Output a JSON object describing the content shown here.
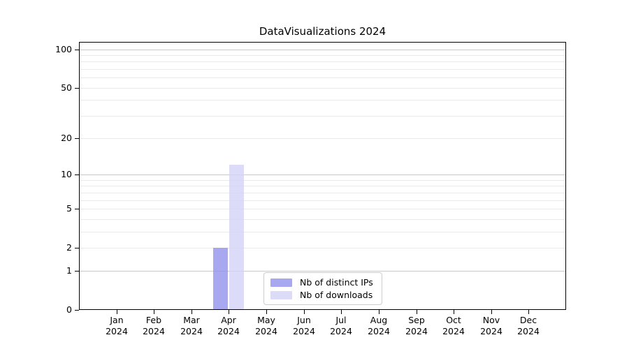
{
  "chart_data": {
    "type": "bar",
    "title": "DataVisualizations 2024",
    "xlabel": "",
    "ylabel": "",
    "yscale": "log1p",
    "ylim": [
      0,
      114
    ],
    "yticks": [
      0,
      1,
      2,
      5,
      10,
      20,
      50,
      100
    ],
    "minor_yticks": [
      3,
      4,
      6,
      7,
      8,
      9,
      30,
      40,
      60,
      70,
      80,
      90
    ],
    "grid": "horizontal",
    "legend_position": "bottom-center",
    "categories": [
      {
        "label": "Jan",
        "sublabel": "2024"
      },
      {
        "label": "Feb",
        "sublabel": "2024"
      },
      {
        "label": "Mar",
        "sublabel": "2024"
      },
      {
        "label": "Apr",
        "sublabel": "2024"
      },
      {
        "label": "May",
        "sublabel": "2024"
      },
      {
        "label": "Jun",
        "sublabel": "2024"
      },
      {
        "label": "Jul",
        "sublabel": "2024"
      },
      {
        "label": "Aug",
        "sublabel": "2024"
      },
      {
        "label": "Sep",
        "sublabel": "2024"
      },
      {
        "label": "Oct",
        "sublabel": "2024"
      },
      {
        "label": "Nov",
        "sublabel": "2024"
      },
      {
        "label": "Dec",
        "sublabel": "2024"
      }
    ],
    "series": [
      {
        "name": "Nb of distinct IPs",
        "color": "rgba(146,146,236,0.8)",
        "values": [
          0,
          0,
          0,
          2,
          0,
          0,
          0,
          0,
          0,
          0,
          0,
          0
        ]
      },
      {
        "name": "Nb of downloads",
        "color": "rgba(211,211,246,0.8)",
        "values": [
          0,
          0,
          0,
          12,
          0,
          0,
          0,
          0,
          0,
          0,
          0,
          0
        ]
      }
    ],
    "colors": {
      "grid_major": "#c9c9c9",
      "grid_minor": "#e9e9e9",
      "axis": "#000000",
      "background": "#ffffff",
      "legend_border": "#cccccc"
    }
  }
}
